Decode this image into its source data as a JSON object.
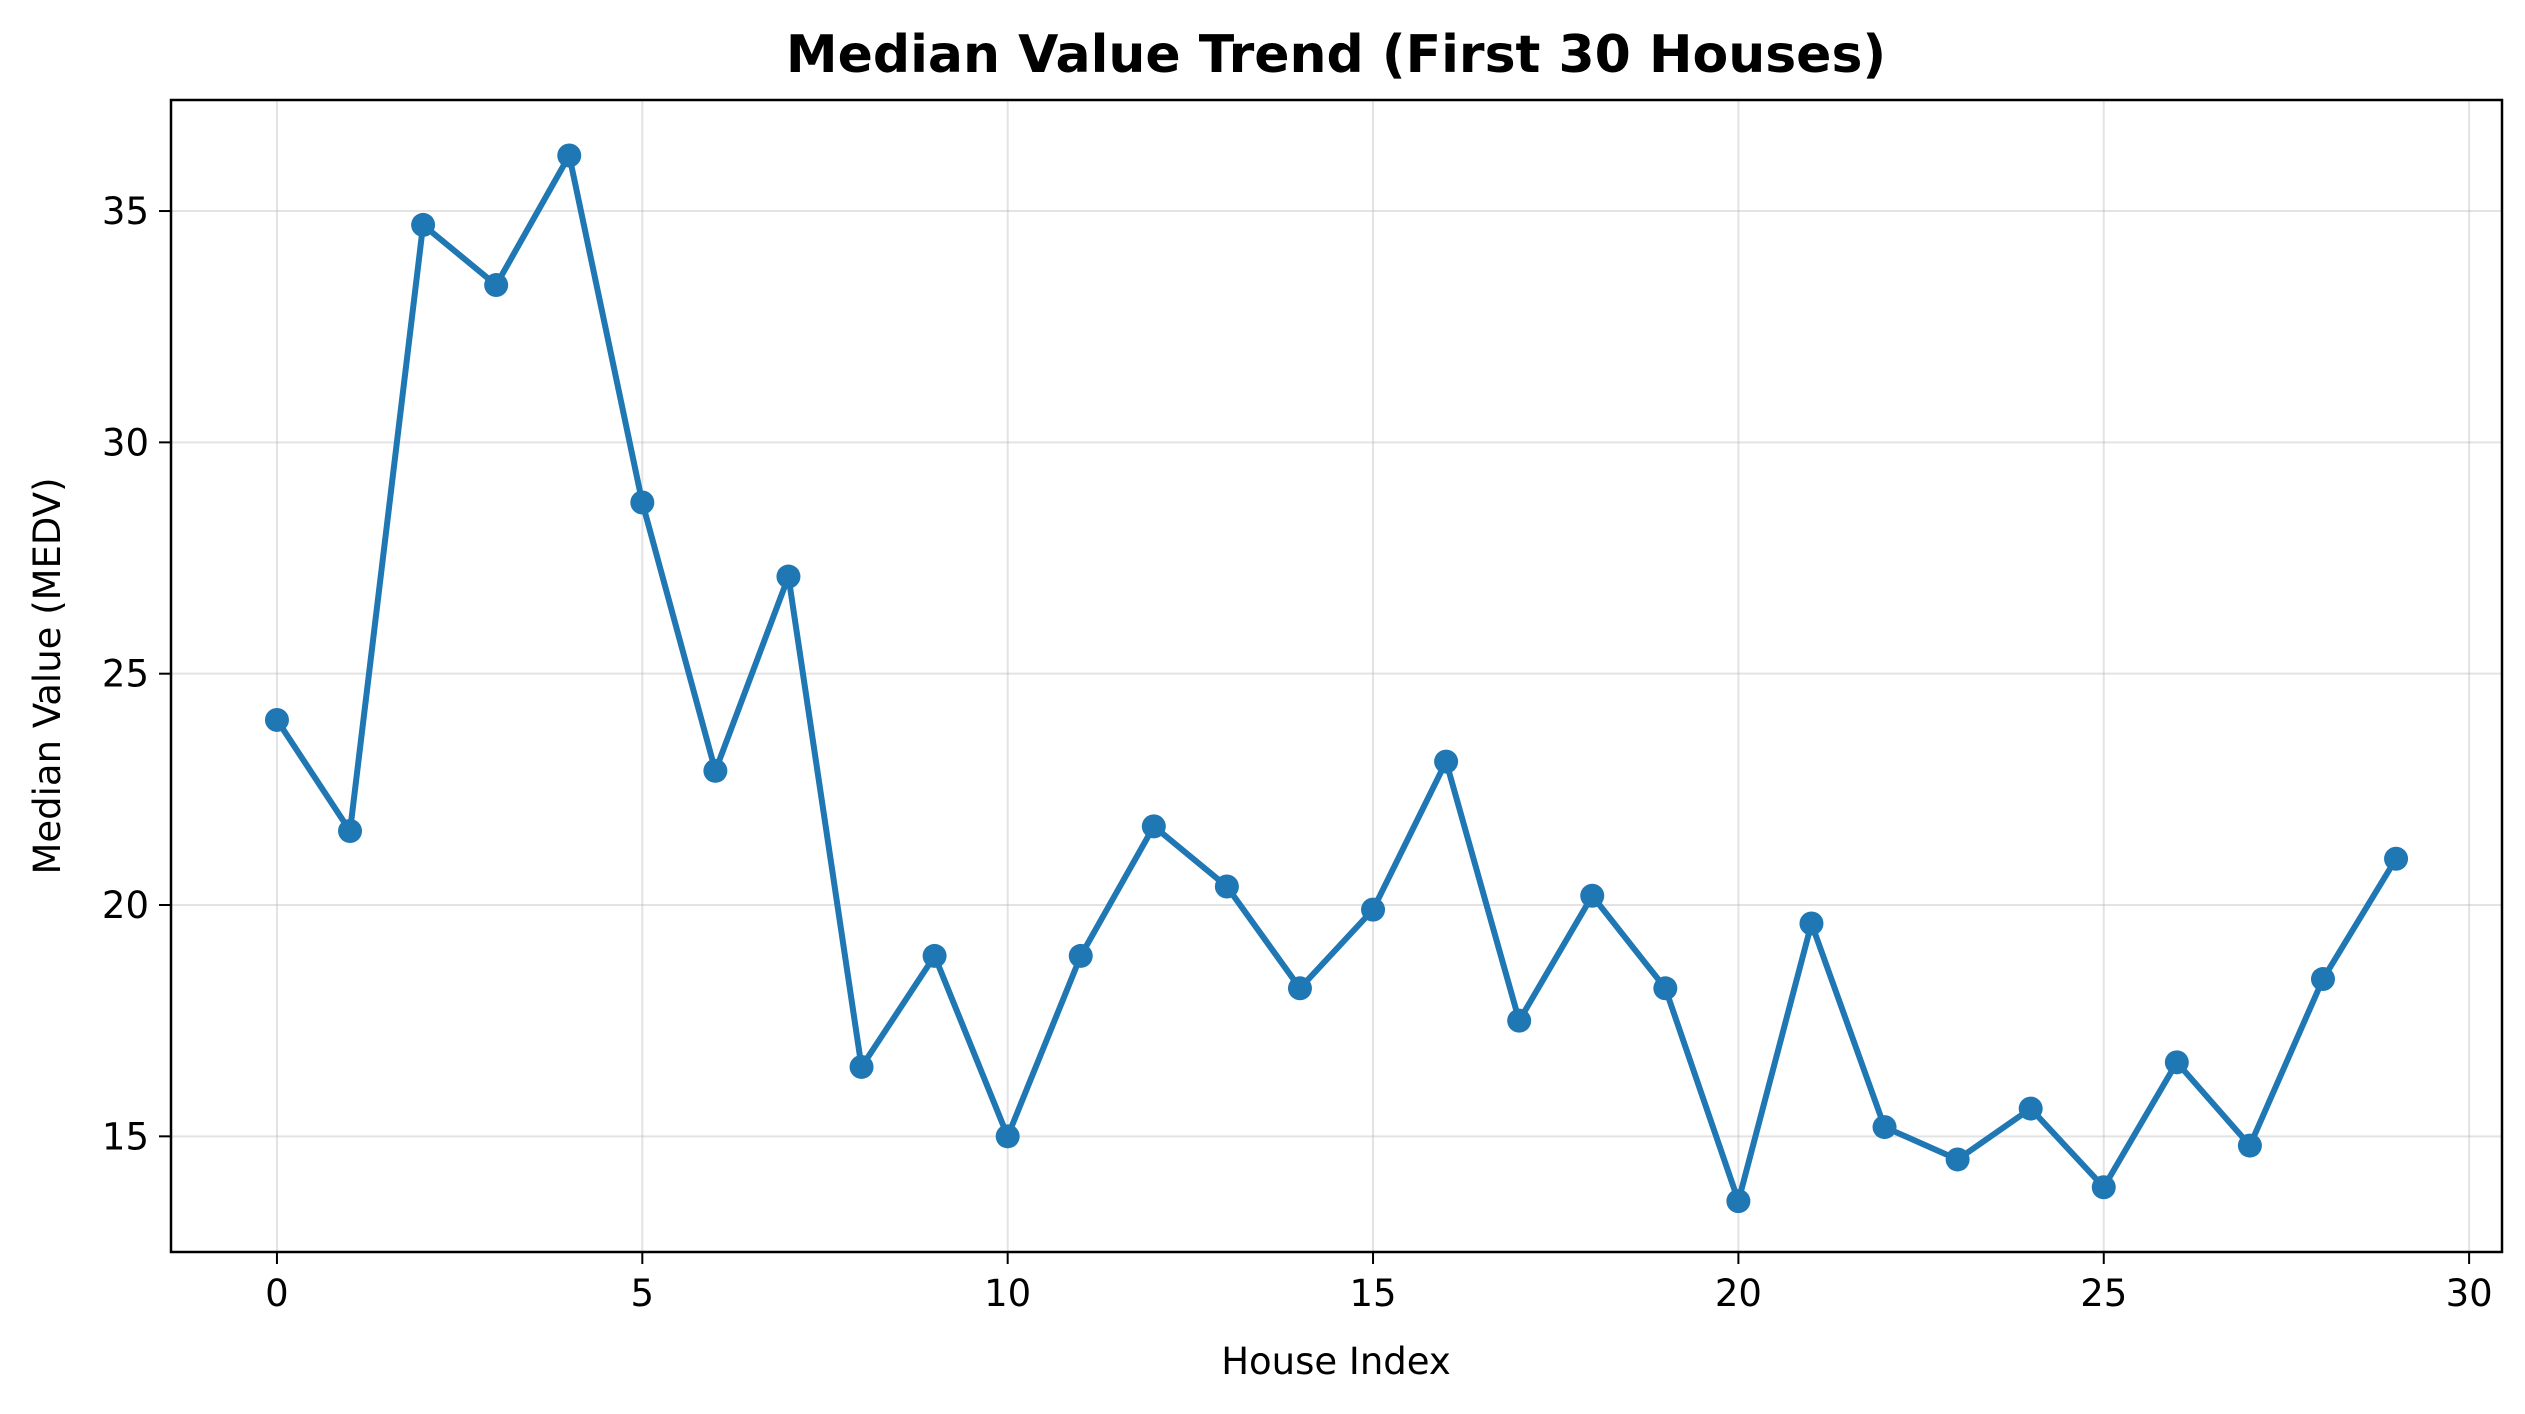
{
  "chart_data": {
    "type": "line",
    "title": "Median Value Trend (First 30 Houses)",
    "xlabel": "House Index",
    "ylabel": "Median Value (MEDV)",
    "xlim": [
      -1.45,
      30.45
    ],
    "ylim": [
      12.5,
      37.4
    ],
    "xticks": [
      0,
      5,
      10,
      15,
      20,
      25,
      30
    ],
    "yticks": [
      15,
      20,
      25,
      30,
      35
    ],
    "grid": true,
    "line_color": "#1f77b4",
    "marker": "circle",
    "series": [
      {
        "x": [
          0,
          1,
          2,
          3,
          4,
          5,
          6,
          7,
          8,
          9,
          10,
          11,
          12,
          13,
          14,
          15,
          16,
          17,
          18,
          19,
          20,
          21,
          22,
          23,
          24,
          25,
          26,
          27,
          28,
          29
        ],
        "values": [
          24.0,
          21.6,
          34.7,
          33.4,
          36.2,
          28.7,
          22.9,
          27.1,
          16.5,
          18.9,
          15.0,
          18.9,
          21.7,
          20.4,
          18.2,
          19.9,
          23.1,
          17.5,
          20.2,
          18.2,
          13.6,
          19.6,
          15.2,
          14.5,
          15.6,
          13.9,
          16.6,
          14.8,
          18.4,
          21.0
        ]
      }
    ]
  }
}
